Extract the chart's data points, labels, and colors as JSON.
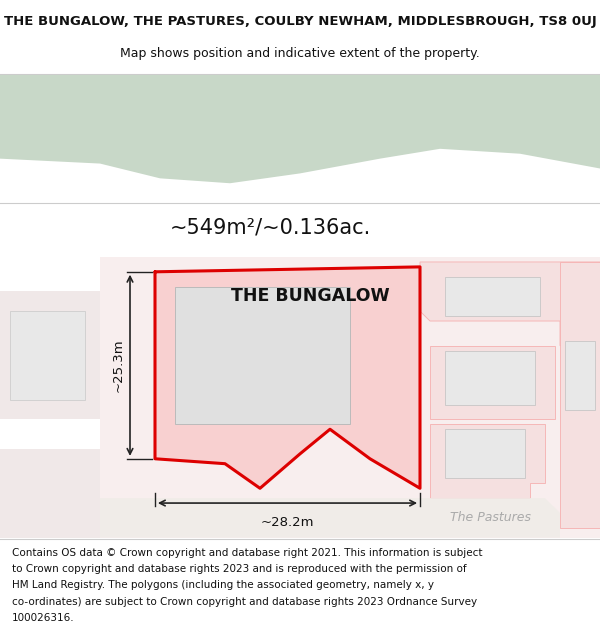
{
  "title_line1": "THE BUNGALOW, THE PASTURES, COULBY NEWHAM, MIDDLESBROUGH, TS8 0UJ",
  "title_line2": "Map shows position and indicative extent of the property.",
  "area_text": "~549m²/~0.136ac.",
  "property_label": "THE BUNGALOW",
  "dimension_h": "~25.3m",
  "dimension_w": "~28.2m",
  "road_label": "The Pastures",
  "footer_lines": [
    "Contains OS data © Crown copyright and database right 2021. This information is subject",
    "to Crown copyright and database rights 2023 and is reproduced with the permission of",
    "HM Land Registry. The polygons (including the associated geometry, namely x, y",
    "co-ordinates) are subject to Crown copyright and database rights 2023 Ordnance Survey",
    "100026316."
  ],
  "bg_color": "#ffffff",
  "map_bg": "#f5f5f0",
  "green_area_color": "#c8d8c8",
  "red_outline_color": "#dd0000",
  "light_red_color": "#f5b0b0",
  "building_fill": "#e8e8e8",
  "building_outline": "#c0c0c0",
  "title_fontsize": 9.5,
  "subtitle_fontsize": 9,
  "area_fontsize": 15,
  "label_fontsize": 12.5,
  "footer_fontsize": 7.5
}
